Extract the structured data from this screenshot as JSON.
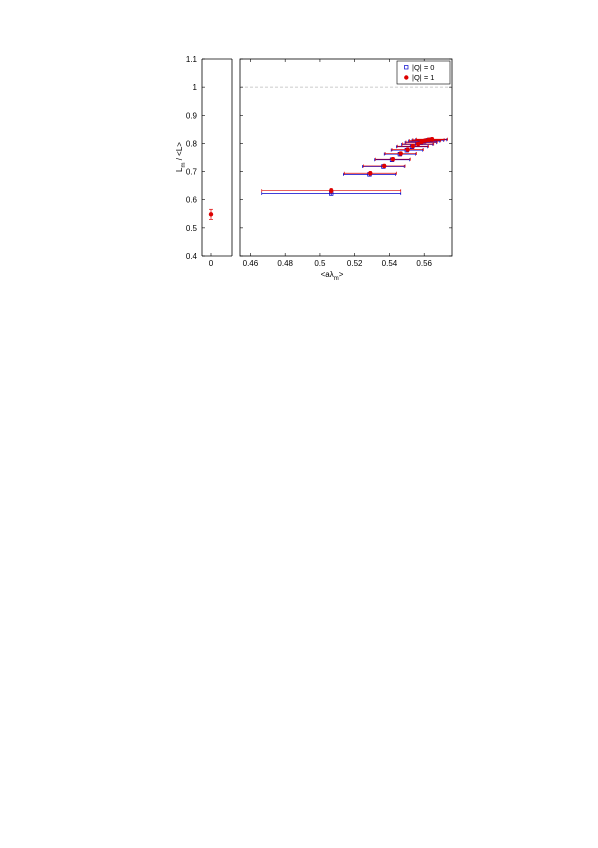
{
  "chart_data": {
    "type": "scatter",
    "ylabel_main": "L",
    "ylabel_sub": "m",
    "ylabel_rest": " / <L>",
    "xlabel_main": "<aλ",
    "xlabel_sub": "m",
    "xlabel_rest": ">",
    "ylim": [
      0.4,
      1.1
    ],
    "xlim": [
      0.454,
      0.576
    ],
    "yticks": [
      "0.4",
      "0.5",
      "0.6",
      "0.7",
      "0.8",
      "0.9",
      "1",
      "1.1"
    ],
    "xticks_left": [
      "0"
    ],
    "xticks_main": [
      "0.46",
      "0.48",
      "0.5",
      "0.52",
      "0.54",
      "0.56"
    ],
    "reference_line_y": 1.0,
    "legend_position": "top-right",
    "series": [
      {
        "name": "|Q| = 0",
        "marker": "open-square",
        "color": "#0000cc",
        "points": [
          {
            "x": 0.5065,
            "y": 0.622,
            "xerr": 0.04,
            "yerr": 0.006
          },
          {
            "x": 0.5285,
            "y": 0.69,
            "xerr": 0.015,
            "yerr": 0.006
          },
          {
            "x": 0.5365,
            "y": 0.718,
            "xerr": 0.012,
            "yerr": 0.006
          },
          {
            "x": 0.5415,
            "y": 0.742,
            "xerr": 0.01,
            "yerr": 0.006
          },
          {
            "x": 0.546,
            "y": 0.762,
            "xerr": 0.009,
            "yerr": 0.006
          },
          {
            "x": 0.55,
            "y": 0.776,
            "xerr": 0.009,
            "yerr": 0.006
          },
          {
            "x": 0.553,
            "y": 0.788,
            "xerr": 0.009,
            "yerr": 0.006
          },
          {
            "x": 0.556,
            "y": 0.796,
            "xerr": 0.009,
            "yerr": 0.006
          },
          {
            "x": 0.558,
            "y": 0.803,
            "xerr": 0.009,
            "yerr": 0.006
          },
          {
            "x": 0.56,
            "y": 0.808,
            "xerr": 0.009,
            "yerr": 0.006
          },
          {
            "x": 0.562,
            "y": 0.811,
            "xerr": 0.009,
            "yerr": 0.006
          },
          {
            "x": 0.564,
            "y": 0.813,
            "xerr": 0.009,
            "yerr": 0.006
          }
        ]
      },
      {
        "name": "|Q| = 1",
        "marker": "filled-circle",
        "color": "#dd0000",
        "zero_point": {
          "x": 0,
          "y": 0.548,
          "yerr": 0.018
        },
        "points": [
          {
            "x": 0.5065,
            "y": 0.632,
            "xerr": 0.04,
            "yerr": 0.008
          },
          {
            "x": 0.529,
            "y": 0.694,
            "xerr": 0.015,
            "yerr": 0.006
          },
          {
            "x": 0.537,
            "y": 0.72,
            "xerr": 0.012,
            "yerr": 0.006
          },
          {
            "x": 0.542,
            "y": 0.744,
            "xerr": 0.01,
            "yerr": 0.006
          },
          {
            "x": 0.5465,
            "y": 0.764,
            "xerr": 0.009,
            "yerr": 0.006
          },
          {
            "x": 0.5505,
            "y": 0.778,
            "xerr": 0.009,
            "yerr": 0.006
          },
          {
            "x": 0.5535,
            "y": 0.79,
            "xerr": 0.009,
            "yerr": 0.006
          },
          {
            "x": 0.5565,
            "y": 0.798,
            "xerr": 0.009,
            "yerr": 0.006
          },
          {
            "x": 0.5585,
            "y": 0.805,
            "xerr": 0.009,
            "yerr": 0.006
          },
          {
            "x": 0.5605,
            "y": 0.81,
            "xerr": 0.009,
            "yerr": 0.006
          },
          {
            "x": 0.5625,
            "y": 0.813,
            "xerr": 0.009,
            "yerr": 0.006
          },
          {
            "x": 0.5645,
            "y": 0.815,
            "xerr": 0.009,
            "yerr": 0.006
          }
        ]
      }
    ]
  }
}
